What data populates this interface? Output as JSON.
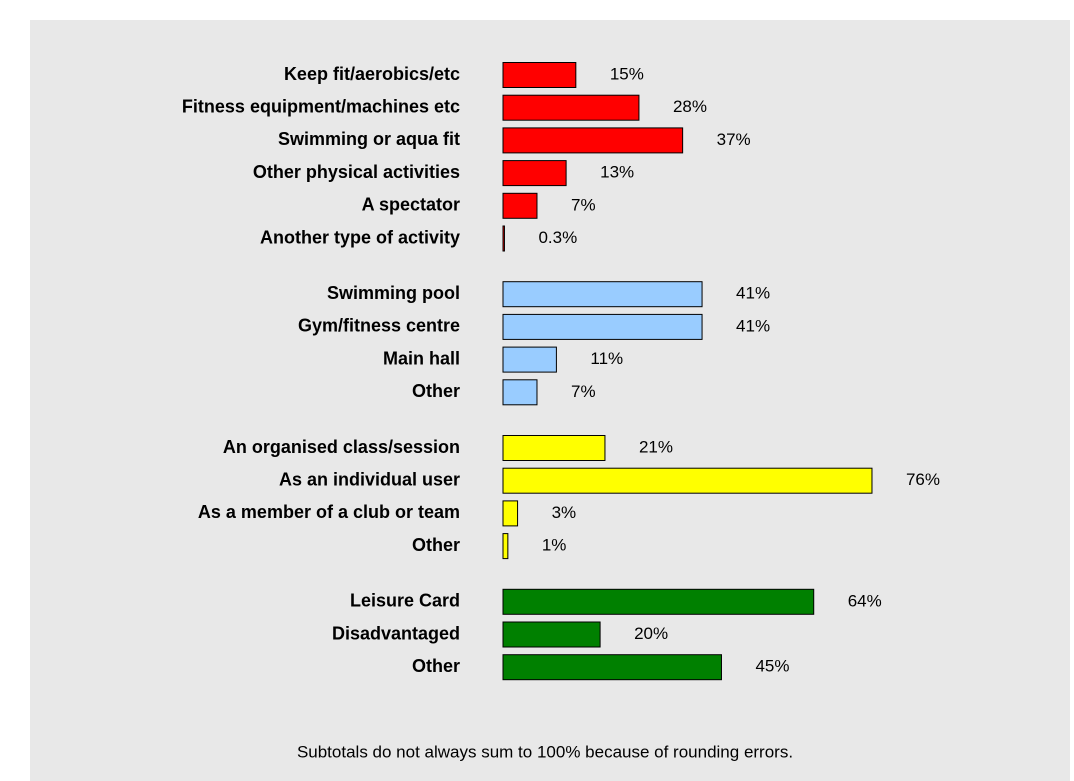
{
  "chart_data": {
    "type": "bar",
    "orientation": "horizontal",
    "groups": [
      {
        "color": "#ff0000",
        "categories": [
          "Keep fit/aerobics/etc",
          "Fitness equipment/machines etc",
          "Swimming or aqua fit",
          "Other physical activities",
          "A spectator",
          "Another type of activity"
        ],
        "values": [
          15,
          28,
          37,
          13,
          7,
          0.3
        ],
        "value_labels": [
          "15%",
          "28%",
          "37%",
          "13%",
          "7%",
          "0.3%"
        ]
      },
      {
        "color": "#99ccff",
        "categories": [
          "Swimming pool",
          "Gym/fitness centre",
          "Main hall",
          "Other"
        ],
        "values": [
          41,
          41,
          11,
          7
        ],
        "value_labels": [
          "41%",
          "41%",
          "11%",
          "7%"
        ]
      },
      {
        "color": "#ffff00",
        "categories": [
          "An organised class/session",
          "As an individual user",
          "As a member of a club or team",
          "Other"
        ],
        "values": [
          21,
          76,
          3,
          1
        ],
        "value_labels": [
          "21%",
          "76%",
          "3%",
          "1%"
        ]
      },
      {
        "color": "#008000",
        "categories": [
          "Leisure Card",
          "Disadvantaged",
          "Other"
        ],
        "values": [
          64,
          20,
          45
        ],
        "value_labels": [
          "64%",
          "20%",
          "45%"
        ]
      }
    ],
    "note": "Subtotals do not always sum to 100% because of rounding errors."
  }
}
